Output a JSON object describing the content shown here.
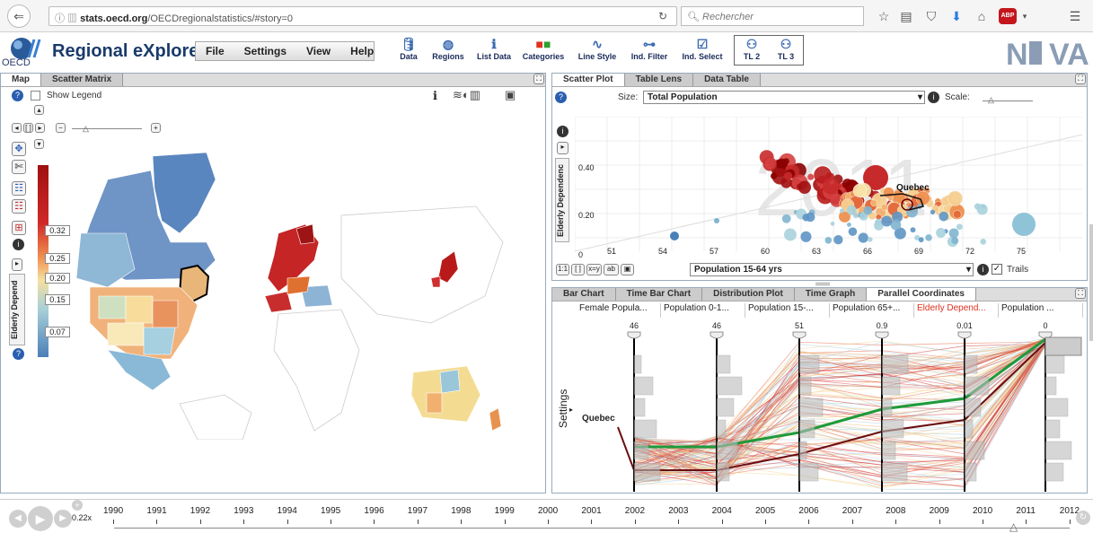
{
  "browser": {
    "url_domain": "stats.oecd.org",
    "url_rest": "/OECDregionalstatistics/#story=0",
    "search_placeholder": "Rechercher",
    "abp_label": "ABP"
  },
  "app": {
    "title": "Regional eXplorer",
    "oecd_label": "OECD",
    "menu": [
      "File",
      "Settings",
      "View",
      "Help"
    ],
    "toolbar": [
      {
        "label": "Data",
        "icon": "database-icon"
      },
      {
        "label": "Regions",
        "icon": "regions-icon"
      },
      {
        "label": "List Data",
        "icon": "info-icon"
      },
      {
        "label": "Categories",
        "icon": "categories-icon"
      },
      {
        "label": "Line Style",
        "icon": "line-style-icon"
      },
      {
        "label": "Ind. Filter",
        "icon": "filter-icon"
      },
      {
        "label": "Ind. Select",
        "icon": "select-icon"
      },
      {
        "label": "TL 2",
        "icon": "tl2-icon"
      },
      {
        "label": "TL 3",
        "icon": "tl3-icon"
      }
    ],
    "logo_text": "NCVA"
  },
  "map_panel": {
    "tabs": [
      "Map",
      "Scatter Matrix"
    ],
    "show_legend_label": "Show Legend",
    "legend_title": "Elderly Depend",
    "legend_values": [
      "0.32",
      "0.25",
      "0.20",
      "0.15",
      "0.07"
    ]
  },
  "scatter_panel": {
    "tabs": [
      "Scatter Plot",
      "Table Lens",
      "Data Table"
    ],
    "size_label": "Size:",
    "size_value": "Total Population",
    "scale_label": "Scale:",
    "y_axis_title": "Elderly Dependenc",
    "x_select": "Population 15-64 yrs",
    "trails_label": "Trails",
    "year_watermark": "2011",
    "highlight_label": "Quebec",
    "view_buttons": [
      "1:1",
      "[ ]",
      "x=y",
      "ab"
    ]
  },
  "chart_data": {
    "type": "scatter",
    "x": [
      51,
      54,
      57,
      60,
      63,
      66,
      69,
      72,
      75
    ],
    "xlabel": "Population 15-64 yrs",
    "ylabel": "Elderly Dependenc",
    "y_ticks": [
      "0",
      "0.20",
      "0.40"
    ],
    "x_ticks": [
      "51",
      "54",
      "57",
      "60",
      "63",
      "66",
      "69",
      "72",
      "75"
    ],
    "year": "2011"
  },
  "bottom_panel": {
    "tabs": [
      "Bar Chart",
      "Time Bar Chart",
      "Distribution Plot",
      "Time Graph",
      "Parallel Coordinates"
    ],
    "axes": [
      {
        "label": "Female Popula...",
        "value": "46",
        "color": "#222"
      },
      {
        "label": "Population 0-1...",
        "value": "46",
        "color": "#222"
      },
      {
        "label": "Population 15-...",
        "value": "51",
        "color": "#222"
      },
      {
        "label": "Population 65+...",
        "value": "0.9",
        "color": "#222"
      },
      {
        "label": "Elderly Depend...",
        "value": "0.01",
        "color": "#e0301e"
      },
      {
        "label": "Population ...",
        "value": "0",
        "color": "#222"
      }
    ],
    "settings_label": "Settings",
    "highlight_label": "Quebec"
  },
  "timeline": {
    "speed": "0.22x",
    "years": [
      "1990",
      "1991",
      "1992",
      "1993",
      "1994",
      "1995",
      "1996",
      "1997",
      "1998",
      "1999",
      "2000",
      "2001",
      "2002",
      "2003",
      "2004",
      "2005",
      "2006",
      "2007",
      "2008",
      "2009",
      "2010",
      "2011",
      "2012"
    ],
    "current": "2011"
  }
}
